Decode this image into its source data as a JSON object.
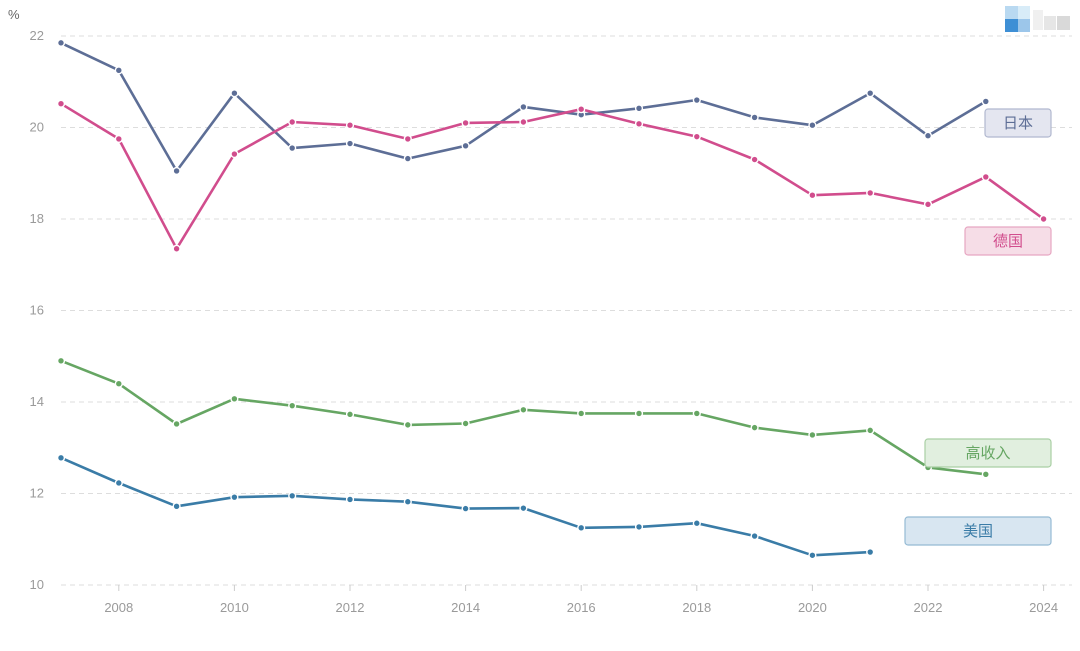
{
  "chart_data": {
    "type": "line",
    "unit_label": "%",
    "x": [
      2007,
      2008,
      2009,
      2010,
      2011,
      2012,
      2013,
      2014,
      2015,
      2016,
      2017,
      2018,
      2019,
      2020,
      2021,
      2022,
      2023,
      2024
    ],
    "xlim": [
      2007,
      2024.5
    ],
    "ylim": [
      10,
      22
    ],
    "x_ticks": [
      2008,
      2010,
      2012,
      2014,
      2016,
      2018,
      2020,
      2022,
      2024
    ],
    "y_ticks": [
      10,
      12,
      14,
      16,
      18,
      20,
      22
    ],
    "grid": true,
    "legend_placement": "right, beside line ends",
    "series": [
      {
        "name": "日本",
        "color": "#5d6e96",
        "label_bg": "#e4e6f0",
        "label_border": "#b1b8cf",
        "values": [
          21.85,
          21.25,
          19.05,
          20.75,
          19.55,
          19.65,
          19.32,
          19.6,
          20.45,
          20.28,
          20.42,
          20.6,
          20.22,
          20.05,
          20.75,
          19.82,
          20.57,
          null
        ]
      },
      {
        "name": "德国",
        "color": "#d14d8d",
        "label_bg": "#f6dde7",
        "label_border": "#e7a6c2",
        "values": [
          20.52,
          19.75,
          17.35,
          19.42,
          20.12,
          20.05,
          19.75,
          20.1,
          20.12,
          20.4,
          20.08,
          19.8,
          19.3,
          18.52,
          18.57,
          18.32,
          18.92,
          18.0
        ]
      },
      {
        "name": "高收入",
        "color": "#66a663",
        "label_bg": "#e1efdf",
        "label_border": "#a9cfa4",
        "values": [
          14.9,
          14.4,
          13.52,
          14.07,
          13.92,
          13.73,
          13.5,
          13.53,
          13.83,
          13.75,
          13.75,
          13.75,
          13.44,
          13.28,
          13.38,
          12.57,
          12.42,
          null
        ]
      },
      {
        "name": "美国",
        "color": "#3a7ca7",
        "label_bg": "#d8e6f1",
        "label_border": "#95bad4",
        "values": [
          12.78,
          12.23,
          11.72,
          11.92,
          11.95,
          11.87,
          11.82,
          11.67,
          11.68,
          11.25,
          11.27,
          11.35,
          11.07,
          10.65,
          10.72,
          null,
          null,
          null
        ]
      }
    ]
  }
}
